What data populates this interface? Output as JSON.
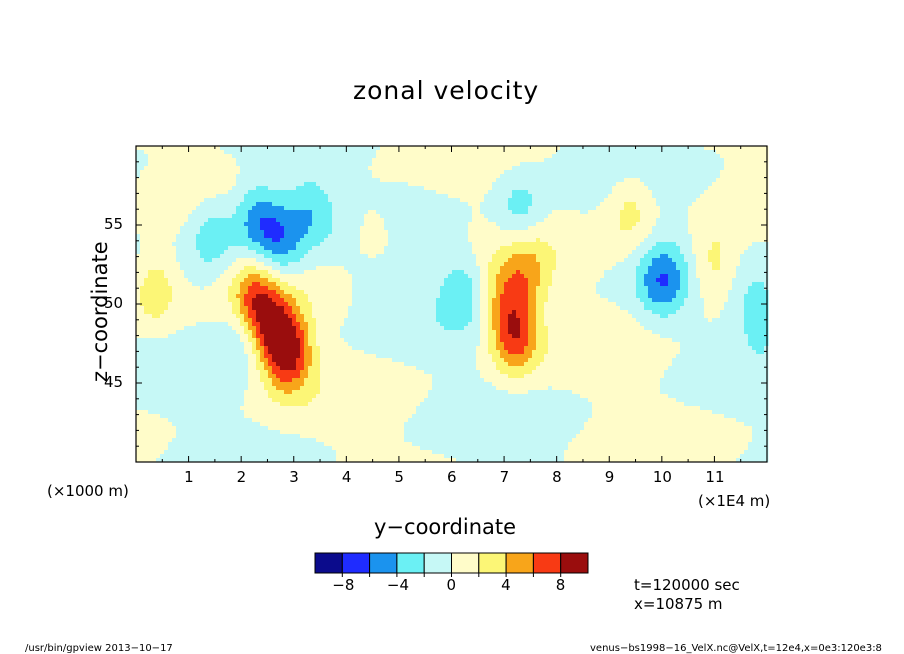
{
  "chart_data": {
    "type": "heatmap",
    "title": "zonal velocity",
    "xlabel": "y−coordinate",
    "ylabel": "z−coordinate",
    "x_unit": "(×1E4 m)",
    "y_unit": "(×1000 m)",
    "xlim": [
      0,
      12
    ],
    "ylim": [
      40,
      60
    ],
    "x_ticks": [
      "1",
      "2",
      "3",
      "4",
      "5",
      "6",
      "7",
      "8",
      "9",
      "10",
      "11"
    ],
    "y_ticks": [
      "45",
      "50",
      "55"
    ],
    "levels": [
      -10,
      -8,
      -6,
      -4,
      -2,
      0,
      2,
      4,
      6,
      8,
      10
    ],
    "colorbar_labels": [
      "−8",
      "−4",
      "0",
      "4",
      "8"
    ],
    "colors": [
      "#0b0b8c",
      "#1f2cff",
      "#1b93ee",
      "#6bf0f4",
      "#c6f8f6",
      "#fffcc9",
      "#fcf676",
      "#f8a51a",
      "#f83a14",
      "#9a0d0d"
    ],
    "features": [
      {
        "y": 0.35,
        "z": 51.0,
        "value": 4.0
      },
      {
        "y": 1.45,
        "z": 54.5,
        "value": -3.5
      },
      {
        "y": 2.0,
        "z": 48.5,
        "value": -2.5
      },
      {
        "y": 2.3,
        "z": 55.5,
        "value": -5.0
      },
      {
        "y": 2.25,
        "z": 50.2,
        "value": 6.5
      },
      {
        "y": 2.65,
        "z": 48.3,
        "value": 6.0
      },
      {
        "y": 2.9,
        "z": 46.8,
        "value": 7.5
      },
      {
        "y": 2.75,
        "z": 54.0,
        "value": -4.5
      },
      {
        "y": 3.3,
        "z": 56.0,
        "value": -3.0
      },
      {
        "y": 4.5,
        "z": 52.5,
        "value": -2.0
      },
      {
        "y": 4.5,
        "z": 54.0,
        "value": 3.0
      },
      {
        "y": 6.2,
        "z": 51.0,
        "value": -3.0
      },
      {
        "y": 7.0,
        "z": 50.5,
        "value": 4.0
      },
      {
        "y": 7.2,
        "z": 48.0,
        "value": 7.0
      },
      {
        "y": 7.45,
        "z": 52.0,
        "value": 3.5
      },
      {
        "y": 7.3,
        "z": 56.0,
        "value": -3.0
      },
      {
        "y": 10.0,
        "z": 51.5,
        "value": -5.0
      },
      {
        "y": 9.4,
        "z": 56.0,
        "value": 3.0
      },
      {
        "y": 11.0,
        "z": 52.5,
        "value": 3.5
      },
      {
        "y": 11.85,
        "z": 49.5,
        "value": -3.0
      }
    ]
  },
  "footer": {
    "left": "/usr/bin/gpview   2013−10−17",
    "right": "venus−bs1998−16_VelX.nc@VelX,t=12e4,x=0e3:120e3:8"
  },
  "info": {
    "time": "t=120000 sec",
    "position": "x=10875 m"
  }
}
